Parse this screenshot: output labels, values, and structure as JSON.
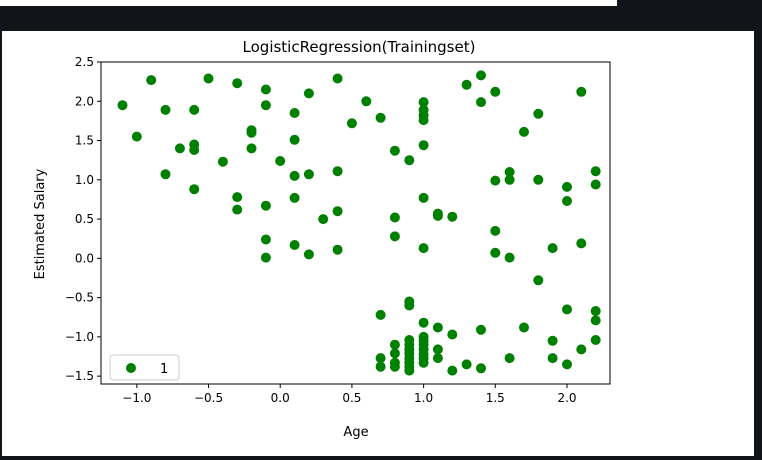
{
  "colors": {
    "page_bg": "#111418",
    "figure_bg": "#ffffff",
    "point": "#008000",
    "axis": "#000000",
    "legend_border": "#cccccc"
  },
  "chart_data": {
    "type": "scatter",
    "title": "LogisticRegression(Trainingset)",
    "xlabel": "Age",
    "ylabel": "Estimated Salary",
    "xlim": [
      -1.25,
      2.3
    ],
    "ylim": [
      -1.6,
      2.5
    ],
    "xticks": [
      -1.0,
      -0.5,
      0.0,
      0.5,
      1.0,
      1.5,
      2.0
    ],
    "xtick_labels": [
      "−1.0",
      "−0.5",
      "0.0",
      "0.5",
      "1.0",
      "1.5",
      "2.0"
    ],
    "yticks": [
      -1.5,
      -1.0,
      -0.5,
      0.0,
      0.5,
      1.0,
      1.5,
      2.0,
      2.5
    ],
    "ytick_labels": [
      "−1.5",
      "−1.0",
      "−0.5",
      "0.0",
      "0.5",
      "1.0",
      "1.5",
      "2.0",
      "2.5"
    ],
    "grid": false,
    "legend": {
      "position": "lower-left"
    },
    "series": [
      {
        "name": "1",
        "color": "#008000",
        "points": [
          [
            -1.1,
            1.95
          ],
          [
            -0.9,
            2.27
          ],
          [
            -1.0,
            1.55
          ],
          [
            -0.8,
            1.89
          ],
          [
            -0.8,
            1.07
          ],
          [
            -0.7,
            1.4
          ],
          [
            -0.6,
            1.89
          ],
          [
            -0.6,
            1.45
          ],
          [
            -0.6,
            1.38
          ],
          [
            -0.6,
            0.88
          ],
          [
            -0.5,
            2.29
          ],
          [
            -0.4,
            1.23
          ],
          [
            -0.3,
            2.23
          ],
          [
            -0.3,
            0.78
          ],
          [
            -0.3,
            0.62
          ],
          [
            -0.2,
            1.63
          ],
          [
            -0.2,
            1.6
          ],
          [
            -0.2,
            1.4
          ],
          [
            -0.1,
            2.15
          ],
          [
            -0.1,
            1.95
          ],
          [
            -0.1,
            0.67
          ],
          [
            -0.1,
            0.24
          ],
          [
            -0.1,
            0.01
          ],
          [
            0.0,
            1.24
          ],
          [
            0.1,
            1.85
          ],
          [
            0.1,
            1.51
          ],
          [
            0.1,
            1.05
          ],
          [
            0.1,
            0.77
          ],
          [
            0.1,
            0.17
          ],
          [
            0.2,
            2.1
          ],
          [
            0.2,
            1.07
          ],
          [
            0.2,
            0.05
          ],
          [
            0.3,
            0.5
          ],
          [
            0.4,
            2.29
          ],
          [
            0.4,
            1.11
          ],
          [
            0.4,
            0.6
          ],
          [
            0.4,
            0.11
          ],
          [
            0.5,
            1.72
          ],
          [
            0.6,
            2.0
          ],
          [
            0.7,
            1.79
          ],
          [
            0.8,
            1.37
          ],
          [
            0.8,
            0.52
          ],
          [
            0.8,
            0.28
          ],
          [
            0.9,
            1.25
          ],
          [
            1.0,
            1.99
          ],
          [
            1.0,
            1.89
          ],
          [
            1.0,
            1.82
          ],
          [
            1.0,
            1.76
          ],
          [
            1.0,
            1.44
          ],
          [
            1.0,
            0.77
          ],
          [
            1.0,
            0.13
          ],
          [
            1.1,
            0.57
          ],
          [
            1.1,
            0.54
          ],
          [
            1.2,
            0.53
          ],
          [
            1.3,
            2.21
          ],
          [
            1.4,
            2.33
          ],
          [
            1.4,
            1.99
          ],
          [
            1.5,
            2.12
          ],
          [
            1.5,
            0.99
          ],
          [
            1.5,
            0.35
          ],
          [
            1.5,
            0.07
          ],
          [
            1.6,
            1.1
          ],
          [
            1.6,
            1.0
          ],
          [
            1.6,
            0.01
          ],
          [
            1.7,
            1.61
          ],
          [
            1.8,
            1.84
          ],
          [
            1.8,
            1.0
          ],
          [
            1.8,
            -0.28
          ],
          [
            1.9,
            0.13
          ],
          [
            2.0,
            0.91
          ],
          [
            2.0,
            0.73
          ],
          [
            2.1,
            2.12
          ],
          [
            2.1,
            0.19
          ],
          [
            2.2,
            1.11
          ],
          [
            2.2,
            0.94
          ],
          [
            0.7,
            -0.72
          ],
          [
            0.7,
            -1.27
          ],
          [
            0.7,
            -1.38
          ],
          [
            0.8,
            -1.1
          ],
          [
            0.8,
            -1.21
          ],
          [
            0.8,
            -1.33
          ],
          [
            0.8,
            -1.38
          ],
          [
            0.9,
            -0.55
          ],
          [
            0.9,
            -0.6
          ],
          [
            0.9,
            -1.04
          ],
          [
            0.9,
            -1.1
          ],
          [
            0.9,
            -1.16
          ],
          [
            0.9,
            -1.21
          ],
          [
            0.9,
            -1.27
          ],
          [
            0.9,
            -1.33
          ],
          [
            0.9,
            -1.38
          ],
          [
            0.9,
            -1.43
          ],
          [
            1.0,
            -0.82
          ],
          [
            1.0,
            -1.0
          ],
          [
            1.0,
            -1.05
          ],
          [
            1.0,
            -1.1
          ],
          [
            1.0,
            -1.16
          ],
          [
            1.0,
            -1.22
          ],
          [
            1.0,
            -1.27
          ],
          [
            1.0,
            -1.33
          ],
          [
            1.1,
            -0.88
          ],
          [
            1.1,
            -1.16
          ],
          [
            1.1,
            -1.27
          ],
          [
            1.2,
            -0.97
          ],
          [
            1.2,
            -1.43
          ],
          [
            1.3,
            -1.35
          ],
          [
            1.4,
            -0.91
          ],
          [
            1.4,
            -1.4
          ],
          [
            1.6,
            -1.27
          ],
          [
            1.7,
            -0.88
          ],
          [
            1.9,
            -1.05
          ],
          [
            1.9,
            -1.27
          ],
          [
            2.0,
            -0.65
          ],
          [
            2.0,
            -1.35
          ],
          [
            2.1,
            -1.16
          ],
          [
            2.2,
            -0.67
          ],
          [
            2.2,
            -0.79
          ],
          [
            2.2,
            -1.04
          ]
        ]
      }
    ]
  }
}
